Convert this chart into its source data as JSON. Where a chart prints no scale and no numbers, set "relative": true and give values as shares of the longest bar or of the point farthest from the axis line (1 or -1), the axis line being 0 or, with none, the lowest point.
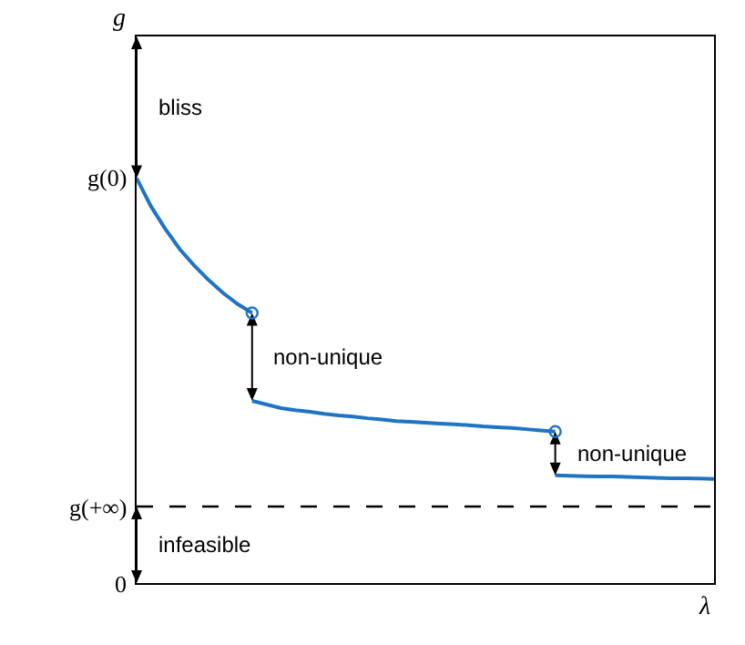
{
  "chart_data": {
    "type": "line",
    "xlabel": "λ",
    "relative": true,
    "categories": [
      null,
      null,
      null,
      null,
      null,
      null,
      null,
      null,
      null,
      null,
      null,
      null,
      null,
      null,
      null,
      null,
      null,
      null,
      null,
      null,
      null,
      null,
      null,
      null,
      null,
      null,
      null,
      null,
      null,
      null,
      null,
      null,
      null,
      null,
      null,
      null,
      null,
      null,
      null,
      null,
      null
    ],
    "marker": "none",
    "line_style": "solid",
    "series": [
      {
        "color": "#1f74c4",
        "values": [
          1.0,
          0.93,
          0.874,
          0.824,
          0.784,
          0.748,
          0.716,
          0.689,
          0.667,
          null,
          null,
          null,
          null,
          null,
          null,
          null,
          null,
          null,
          null,
          null,
          null,
          null,
          null,
          null,
          null,
          null,
          null,
          null,
          null,
          null,
          null,
          null,
          null,
          null,
          null,
          null,
          null,
          null,
          null,
          null,
          null
        ]
      },
      {
        "color": "#1f74c4",
        "values": [
          null,
          null,
          null,
          null,
          null,
          null,
          null,
          null,
          0.45,
          0.441,
          0.432,
          0.427,
          0.423,
          0.418,
          0.414,
          0.411,
          0.407,
          0.404,
          0.4,
          0.398,
          0.396,
          0.394,
          0.392,
          0.39,
          0.387,
          0.385,
          0.383,
          0.38,
          0.377,
          0.374,
          null,
          null,
          null,
          null,
          null,
          null,
          null,
          null,
          null,
          null,
          null
        ]
      },
      {
        "color": "#1f74c4",
        "values": [
          null,
          null,
          null,
          null,
          null,
          null,
          null,
          null,
          null,
          null,
          null,
          null,
          null,
          null,
          null,
          null,
          null,
          null,
          null,
          null,
          null,
          null,
          null,
          null,
          null,
          null,
          null,
          null,
          null,
          0.266,
          0.265,
          0.264,
          0.263,
          0.263,
          0.262,
          0.261,
          0.26,
          0.259,
          0.259,
          0.258,
          0.257
        ]
      }
    ],
    "ref_lines": [
      {
        "axis": "y",
        "value": 0.189,
        "label": "g(+∞)",
        "color": "#000000",
        "line_style": "dashed"
      }
    ],
    "annotations": [
      "g",
      "g(0)",
      "0",
      "bliss",
      "non-unique",
      "non-unique",
      "infeasible"
    ]
  }
}
